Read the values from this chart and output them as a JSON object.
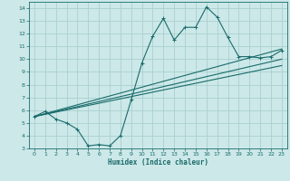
{
  "xlabel": "Humidex (Indice chaleur)",
  "bg_color": "#cce8e8",
  "grid_color": "#aacfcf",
  "line_color": "#1a6b6b",
  "xlim": [
    -0.5,
    23.5
  ],
  "ylim": [
    3,
    14.5
  ],
  "xticks": [
    0,
    1,
    2,
    3,
    4,
    5,
    6,
    7,
    8,
    9,
    10,
    11,
    12,
    13,
    14,
    15,
    16,
    17,
    18,
    19,
    20,
    21,
    22,
    23
  ],
  "yticks": [
    3,
    4,
    5,
    6,
    7,
    8,
    9,
    10,
    11,
    12,
    13,
    14
  ],
  "series1_x": [
    0,
    1,
    2,
    3,
    4,
    5,
    6,
    7,
    8,
    9,
    10,
    11,
    12,
    13,
    14,
    15,
    16,
    17,
    18,
    19,
    20,
    21,
    22,
    23
  ],
  "series1_y": [
    5.5,
    5.9,
    5.3,
    5.0,
    4.5,
    3.2,
    3.3,
    3.2,
    4.0,
    6.8,
    9.7,
    11.8,
    13.2,
    11.5,
    12.5,
    12.5,
    14.1,
    13.3,
    11.7,
    10.2,
    10.2,
    10.1,
    10.2,
    10.7
  ],
  "series2_x": [
    0,
    23
  ],
  "series2_y": [
    5.5,
    10.8
  ],
  "series3_x": [
    0,
    23
  ],
  "series3_y": [
    5.5,
    10.0
  ],
  "series4_x": [
    0,
    23
  ],
  "series4_y": [
    5.5,
    9.5
  ]
}
